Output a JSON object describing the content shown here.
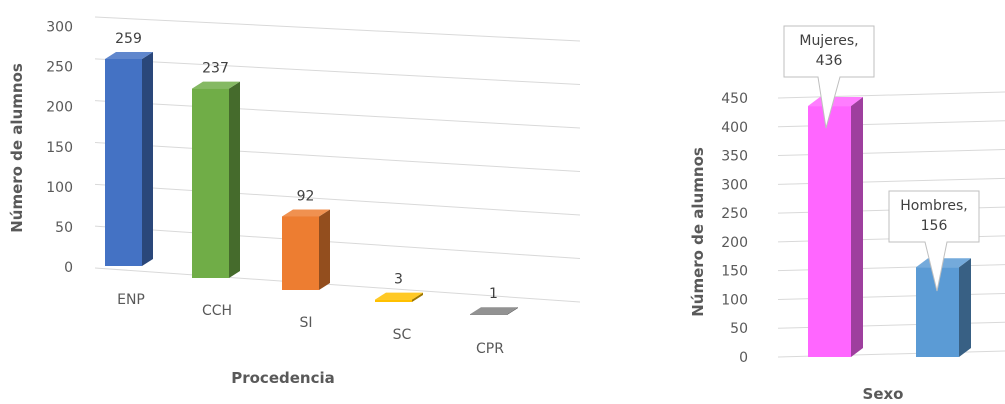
{
  "chart_data": [
    {
      "type": "bar",
      "categories": [
        "ENP",
        "CCH",
        "SI",
        "SC",
        "CPR"
      ],
      "values": [
        259,
        237,
        92,
        3,
        1
      ],
      "data_labels": [
        "259",
        "237",
        "92",
        "3",
        "1"
      ],
      "xlabel": "Procedencia",
      "ylabel": "Número de alumnos",
      "ylim": [
        0,
        300
      ],
      "yticks": [
        "0",
        "50",
        "100",
        "150",
        "200",
        "250",
        "300"
      ],
      "grid": true,
      "legend": "none",
      "colors": [
        "#4472C4",
        "#70AD47",
        "#ED7D31",
        "#FFC000",
        "#7F7F7F"
      ]
    },
    {
      "type": "bar",
      "categories": [
        "Mujeres",
        "Hombres"
      ],
      "values": [
        436,
        156
      ],
      "callouts": [
        [
          "Mujeres,",
          "436"
        ],
        [
          "Hombres,",
          "156"
        ]
      ],
      "xlabel": "Sexo",
      "ylabel": "Número de alumnos",
      "ylim": [
        0,
        450
      ],
      "yticks": [
        "0",
        "50",
        "100",
        "150",
        "200",
        "250",
        "300",
        "350",
        "400",
        "450"
      ],
      "grid": true,
      "legend": "none",
      "colors": [
        "#FF66FF",
        "#5B9BD5"
      ]
    }
  ]
}
